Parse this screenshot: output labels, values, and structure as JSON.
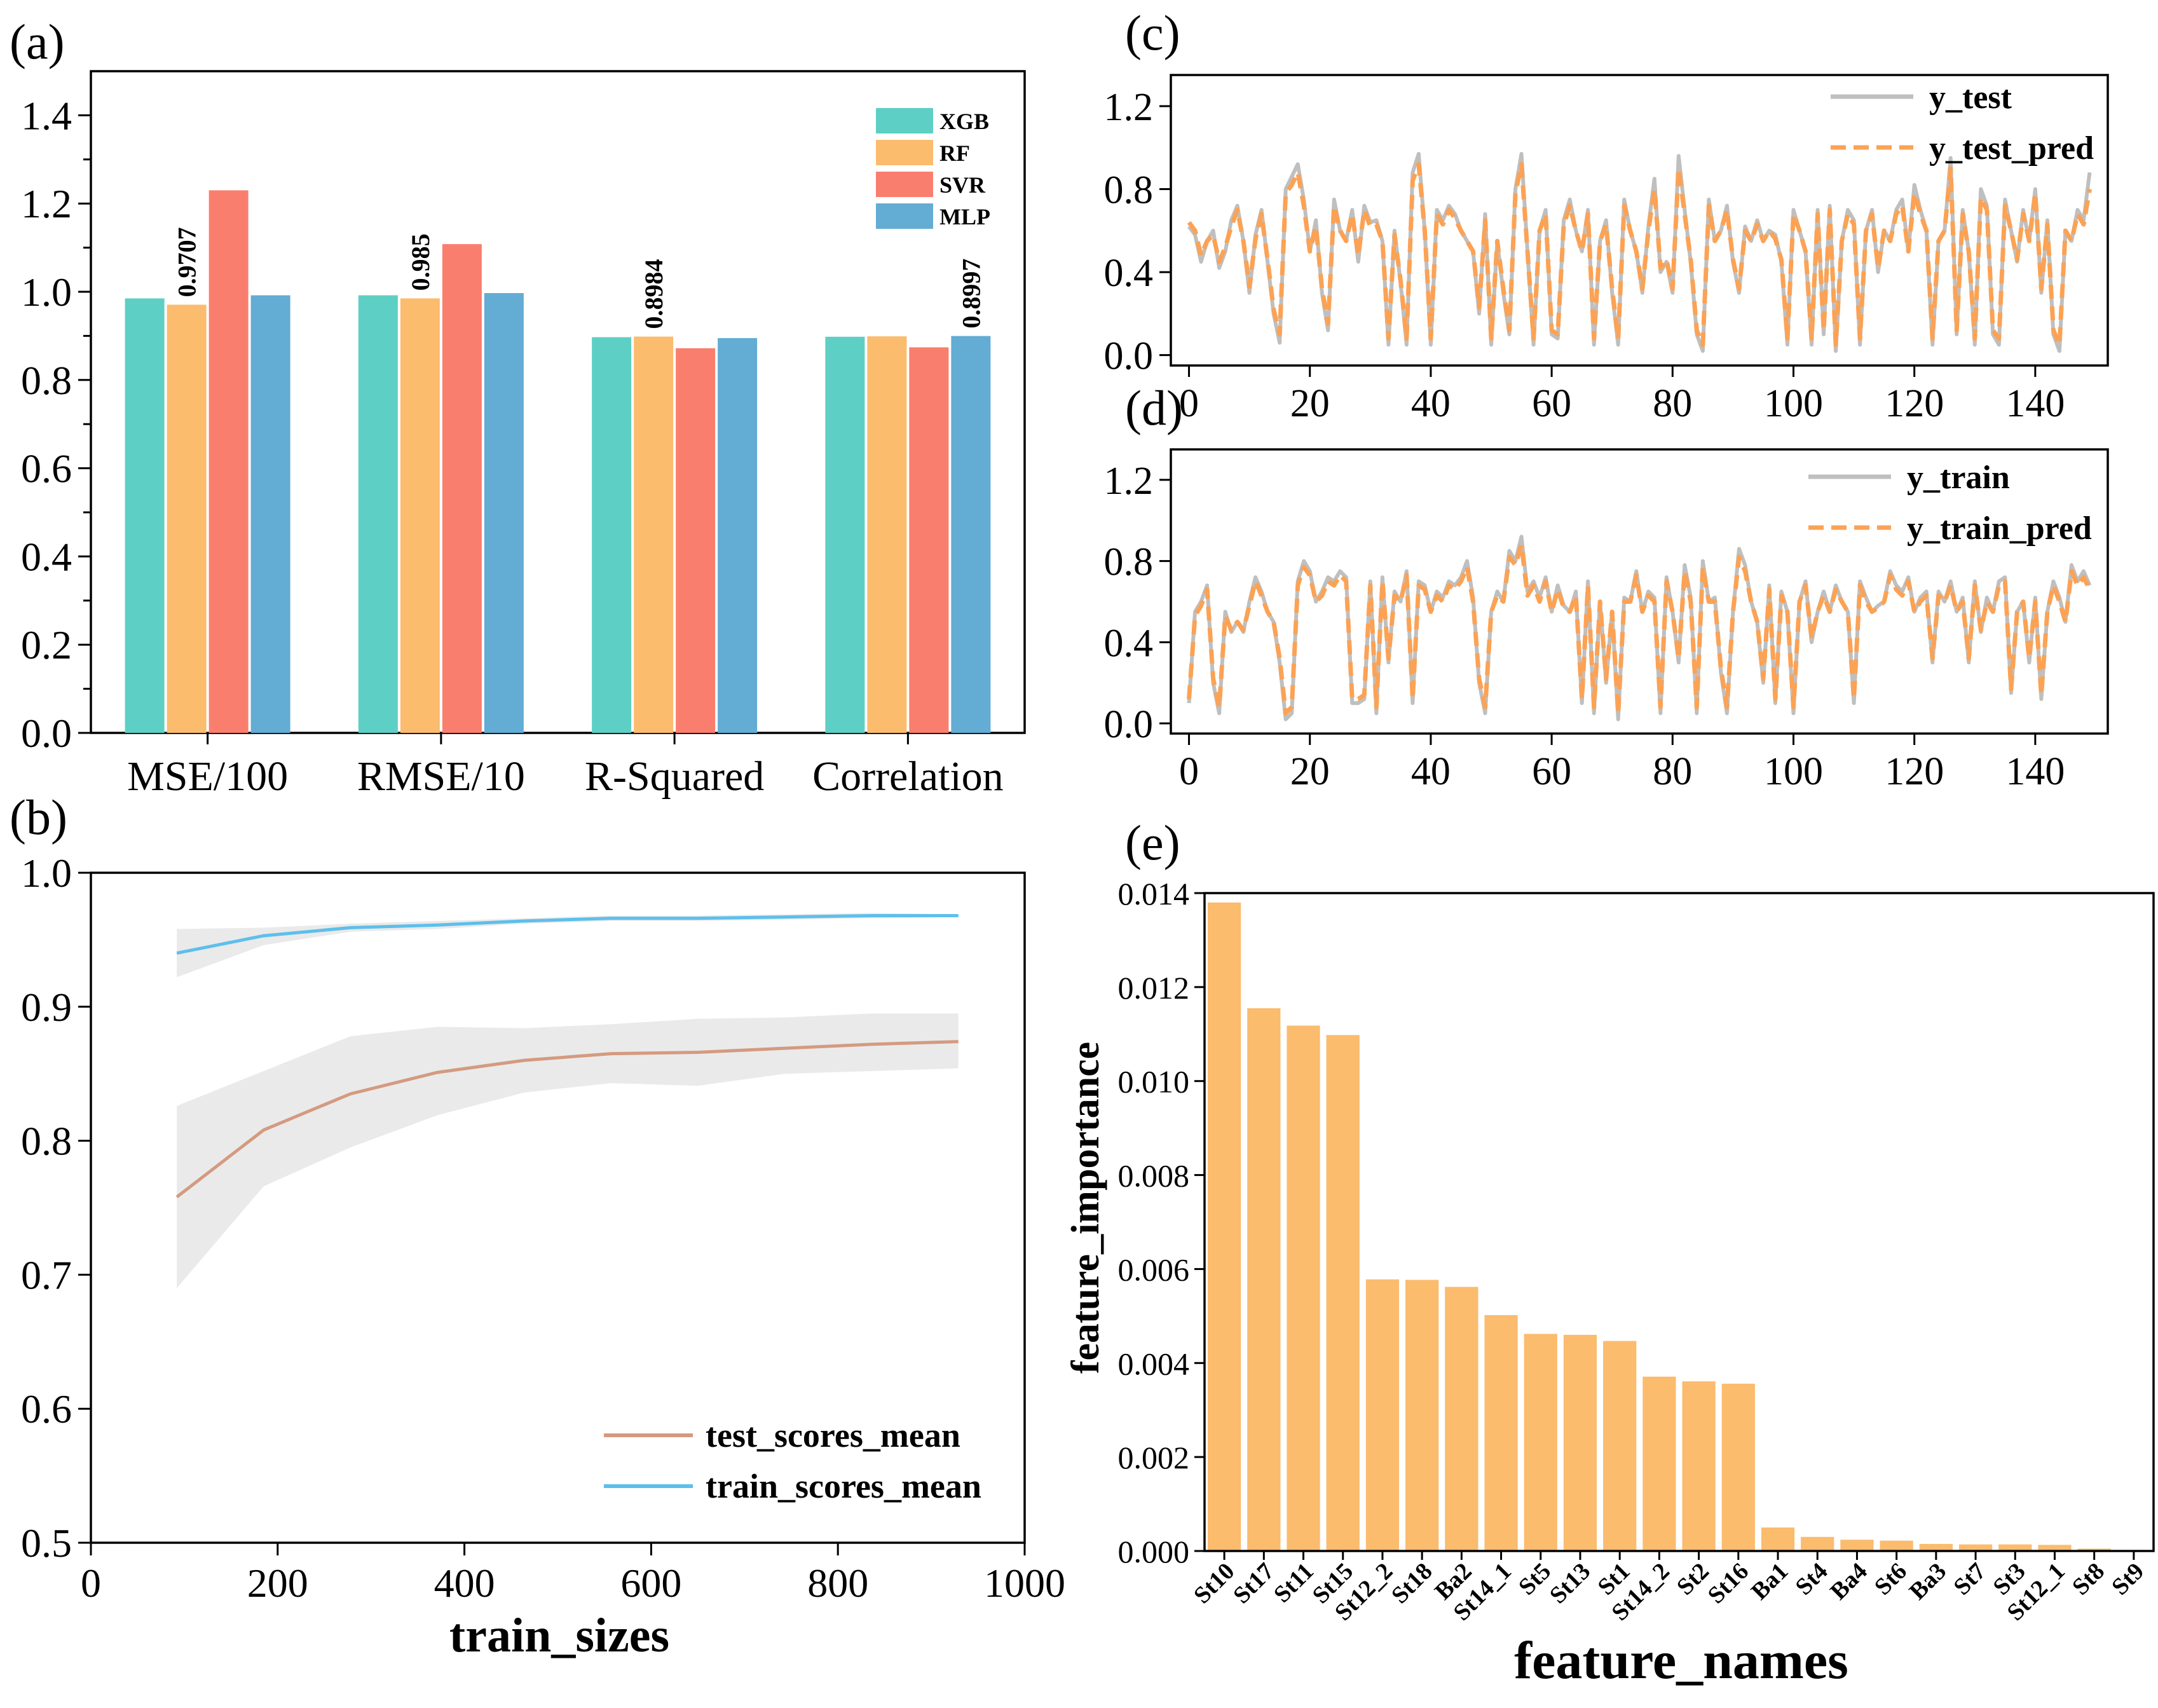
{
  "chart_data": [
    {
      "panel": "(a)",
      "type": "bar",
      "categories": [
        "MSE/100",
        "RMSE/10",
        "R-Squared",
        "Correlation"
      ],
      "series": [
        {
          "name": "XGB",
          "color": "#5ecfc4",
          "values": [
            0.985,
            0.992,
            0.897,
            0.898
          ]
        },
        {
          "name": "RF",
          "color": "#fbbc6e",
          "values": [
            0.9707,
            0.985,
            0.8984,
            0.899
          ]
        },
        {
          "name": "SVR",
          "color": "#fa7e6e",
          "values": [
            1.23,
            1.108,
            0.872,
            0.874
          ]
        },
        {
          "name": "MLP",
          "color": "#63acd3",
          "values": [
            0.992,
            0.997,
            0.895,
            0.8997
          ]
        }
      ],
      "data_labels": [
        {
          "category_index": 0,
          "series_index": 1,
          "text": "0.9707"
        },
        {
          "category_index": 1,
          "series_index": 1,
          "text": "0.985"
        },
        {
          "category_index": 2,
          "series_index": 1,
          "text": "0.8984"
        },
        {
          "category_index": 3,
          "series_index": 3,
          "text": "0.8997"
        }
      ],
      "ylim": [
        0,
        1.5
      ],
      "yticks": [
        "0.0",
        "0.2",
        "0.4",
        "0.6",
        "0.8",
        "1.0",
        "1.2",
        "1.4"
      ],
      "legend": "top-right"
    },
    {
      "panel": "(b)",
      "type": "line",
      "x": [
        92,
        185,
        278,
        371,
        464,
        557,
        650,
        743,
        836,
        929
      ],
      "series": [
        {
          "name": "test_scores_mean",
          "color": "#d49a80",
          "values": [
            0.758,
            0.808,
            0.835,
            0.851,
            0.86,
            0.865,
            0.866,
            0.869,
            0.872,
            0.874
          ],
          "band_upper": [
            0.826,
            0.852,
            0.878,
            0.885,
            0.884,
            0.887,
            0.891,
            0.892,
            0.895,
            0.895
          ],
          "band_lower": [
            0.69,
            0.766,
            0.795,
            0.819,
            0.836,
            0.843,
            0.841,
            0.85,
            0.852,
            0.854
          ]
        },
        {
          "name": "train_scores_mean",
          "color": "#5dbfeb",
          "values": [
            0.94,
            0.953,
            0.959,
            0.961,
            0.964,
            0.966,
            0.966,
            0.967,
            0.968,
            0.968
          ],
          "band_upper": [
            0.958,
            0.959,
            0.962,
            0.964,
            0.966,
            0.968,
            0.968,
            0.969,
            0.97,
            0.969
          ],
          "band_lower": [
            0.922,
            0.946,
            0.956,
            0.958,
            0.962,
            0.964,
            0.964,
            0.965,
            0.966,
            0.967
          ]
        }
      ],
      "xlabel": "train_sizes",
      "xlim": [
        0,
        1000
      ],
      "ylim": [
        0.5,
        1.0
      ],
      "xticks": [
        "0",
        "200",
        "400",
        "600",
        "800",
        "1000"
      ],
      "yticks": [
        "0.5",
        "0.6",
        "0.7",
        "0.8",
        "0.9",
        "1.0"
      ],
      "legend": "bottom-right"
    },
    {
      "panel": "(c)",
      "type": "line",
      "x_range": [
        0,
        149
      ],
      "series": [
        {
          "name": "y_test",
          "color": "#bfbfbf",
          "style": "solid",
          "values": [
            0.62,
            0.58,
            0.45,
            0.55,
            0.6,
            0.42,
            0.5,
            0.65,
            0.72,
            0.55,
            0.3,
            0.58,
            0.7,
            0.45,
            0.2,
            0.06,
            0.8,
            0.86,
            0.92,
            0.75,
            0.5,
            0.65,
            0.3,
            0.12,
            0.75,
            0.6,
            0.55,
            0.7,
            0.45,
            0.72,
            0.64,
            0.65,
            0.55,
            0.05,
            0.6,
            0.35,
            0.05,
            0.88,
            0.97,
            0.6,
            0.05,
            0.7,
            0.65,
            0.72,
            0.68,
            0.6,
            0.55,
            0.5,
            0.2,
            0.68,
            0.05,
            0.55,
            0.3,
            0.1,
            0.8,
            0.97,
            0.5,
            0.05,
            0.6,
            0.7,
            0.1,
            0.08,
            0.65,
            0.75,
            0.6,
            0.5,
            0.7,
            0.05,
            0.55,
            0.65,
            0.3,
            0.05,
            0.75,
            0.6,
            0.5,
            0.3,
            0.62,
            0.85,
            0.4,
            0.45,
            0.3,
            0.96,
            0.7,
            0.45,
            0.1,
            0.02,
            0.75,
            0.55,
            0.6,
            0.72,
            0.45,
            0.3,
            0.62,
            0.55,
            0.65,
            0.55,
            0.6,
            0.58,
            0.45,
            0.05,
            0.7,
            0.6,
            0.5,
            0.05,
            0.7,
            0.1,
            0.72,
            0.02,
            0.55,
            0.7,
            0.65,
            0.05,
            0.6,
            0.7,
            0.4,
            0.6,
            0.55,
            0.7,
            0.75,
            0.5,
            0.82,
            0.7,
            0.6,
            0.05,
            0.55,
            0.6,
            0.95,
            0.1,
            0.7,
            0.5,
            0.05,
            0.8,
            0.72,
            0.1,
            0.05,
            0.75,
            0.6,
            0.45,
            0.7,
            0.55,
            0.8,
            0.3,
            0.65,
            0.1,
            0.02,
            0.6,
            0.55,
            0.7,
            0.65,
            0.88
          ],
          "x_ticks_note": "values index 0..149"
        },
        {
          "name": "y_test_pred",
          "color": "#fba255",
          "style": "dashed",
          "values": [
            0.64,
            0.6,
            0.48,
            0.55,
            0.58,
            0.45,
            0.52,
            0.62,
            0.7,
            0.55,
            0.33,
            0.56,
            0.68,
            0.46,
            0.22,
            0.1,
            0.78,
            0.82,
            0.88,
            0.72,
            0.5,
            0.62,
            0.32,
            0.15,
            0.72,
            0.6,
            0.55,
            0.68,
            0.48,
            0.7,
            0.62,
            0.63,
            0.55,
            0.08,
            0.58,
            0.36,
            0.08,
            0.84,
            0.92,
            0.6,
            0.08,
            0.68,
            0.63,
            0.7,
            0.66,
            0.6,
            0.55,
            0.5,
            0.23,
            0.65,
            0.08,
            0.55,
            0.32,
            0.12,
            0.78,
            0.92,
            0.5,
            0.08,
            0.6,
            0.68,
            0.12,
            0.1,
            0.63,
            0.72,
            0.6,
            0.5,
            0.68,
            0.08,
            0.55,
            0.63,
            0.32,
            0.08,
            0.72,
            0.6,
            0.5,
            0.32,
            0.6,
            0.8,
            0.42,
            0.46,
            0.32,
            0.9,
            0.68,
            0.46,
            0.12,
            0.05,
            0.72,
            0.55,
            0.6,
            0.7,
            0.46,
            0.32,
            0.6,
            0.55,
            0.63,
            0.55,
            0.6,
            0.56,
            0.46,
            0.08,
            0.68,
            0.6,
            0.5,
            0.08,
            0.68,
            0.12,
            0.7,
            0.05,
            0.55,
            0.68,
            0.63,
            0.08,
            0.6,
            0.68,
            0.42,
            0.6,
            0.55,
            0.68,
            0.72,
            0.5,
            0.78,
            0.68,
            0.6,
            0.08,
            0.55,
            0.6,
            0.9,
            0.12,
            0.68,
            0.5,
            0.08,
            0.76,
            0.7,
            0.12,
            0.08,
            0.72,
            0.6,
            0.46,
            0.68,
            0.55,
            0.78,
            0.32,
            0.63,
            0.12,
            0.05,
            0.6,
            0.55,
            0.68,
            0.63,
            0.8
          ]
        }
      ],
      "xlim": [
        -3,
        152
      ],
      "ylim": [
        -0.05,
        1.35
      ],
      "xticks": [
        "0",
        "20",
        "40",
        "60",
        "80",
        "100",
        "120",
        "140"
      ],
      "yticks": [
        "0.0",
        "0.4",
        "0.8",
        "1.2"
      ],
      "legend": "top-right"
    },
    {
      "panel": "(d)",
      "type": "line",
      "x_range": [
        0,
        149
      ],
      "series": [
        {
          "name": "y_train",
          "color": "#bfbfbf",
          "style": "solid",
          "values": [
            0.1,
            0.55,
            0.6,
            0.68,
            0.2,
            0.05,
            0.55,
            0.45,
            0.5,
            0.45,
            0.6,
            0.72,
            0.65,
            0.55,
            0.5,
            0.3,
            0.02,
            0.05,
            0.7,
            0.8,
            0.75,
            0.6,
            0.65,
            0.72,
            0.7,
            0.75,
            0.72,
            0.1,
            0.1,
            0.12,
            0.7,
            0.05,
            0.72,
            0.3,
            0.65,
            0.6,
            0.75,
            0.1,
            0.7,
            0.68,
            0.55,
            0.65,
            0.62,
            0.7,
            0.68,
            0.72,
            0.8,
            0.62,
            0.2,
            0.05,
            0.55,
            0.65,
            0.6,
            0.85,
            0.8,
            0.92,
            0.65,
            0.7,
            0.62,
            0.72,
            0.55,
            0.68,
            0.58,
            0.55,
            0.65,
            0.1,
            0.7,
            0.05,
            0.6,
            0.2,
            0.55,
            0.02,
            0.62,
            0.6,
            0.75,
            0.55,
            0.65,
            0.62,
            0.05,
            0.72,
            0.55,
            0.3,
            0.78,
            0.62,
            0.05,
            0.8,
            0.6,
            0.62,
            0.25,
            0.05,
            0.55,
            0.86,
            0.78,
            0.6,
            0.5,
            0.2,
            0.68,
            0.1,
            0.65,
            0.55,
            0.05,
            0.6,
            0.7,
            0.4,
            0.55,
            0.65,
            0.55,
            0.68,
            0.6,
            0.55,
            0.1,
            0.7,
            0.62,
            0.55,
            0.58,
            0.6,
            0.75,
            0.68,
            0.65,
            0.72,
            0.55,
            0.62,
            0.65,
            0.3,
            0.65,
            0.6,
            0.7,
            0.55,
            0.62,
            0.3,
            0.7,
            0.45,
            0.62,
            0.55,
            0.7,
            0.72,
            0.15,
            0.55,
            0.6,
            0.3,
            0.62,
            0.12,
            0.55,
            0.7,
            0.62,
            0.5,
            0.78,
            0.7,
            0.75,
            0.68
          ],
          "x_ticks_note": "values index 0..149"
        },
        {
          "name": "y_train_pred",
          "color": "#fba255",
          "style": "dashed",
          "values": [
            0.12,
            0.53,
            0.58,
            0.66,
            0.22,
            0.08,
            0.53,
            0.46,
            0.5,
            0.46,
            0.58,
            0.7,
            0.63,
            0.55,
            0.5,
            0.32,
            0.05,
            0.08,
            0.68,
            0.77,
            0.73,
            0.6,
            0.63,
            0.7,
            0.68,
            0.73,
            0.7,
            0.12,
            0.12,
            0.14,
            0.68,
            0.08,
            0.7,
            0.32,
            0.63,
            0.6,
            0.73,
            0.12,
            0.68,
            0.66,
            0.55,
            0.63,
            0.6,
            0.68,
            0.66,
            0.7,
            0.77,
            0.6,
            0.22,
            0.08,
            0.55,
            0.63,
            0.6,
            0.82,
            0.78,
            0.88,
            0.63,
            0.68,
            0.6,
            0.7,
            0.55,
            0.66,
            0.57,
            0.55,
            0.63,
            0.12,
            0.68,
            0.08,
            0.6,
            0.22,
            0.55,
            0.05,
            0.6,
            0.6,
            0.73,
            0.55,
            0.63,
            0.6,
            0.08,
            0.7,
            0.55,
            0.32,
            0.75,
            0.6,
            0.08,
            0.77,
            0.6,
            0.6,
            0.27,
            0.08,
            0.55,
            0.82,
            0.75,
            0.6,
            0.5,
            0.22,
            0.66,
            0.12,
            0.63,
            0.55,
            0.08,
            0.6,
            0.68,
            0.42,
            0.55,
            0.63,
            0.55,
            0.66,
            0.6,
            0.55,
            0.12,
            0.68,
            0.6,
            0.55,
            0.57,
            0.6,
            0.73,
            0.66,
            0.63,
            0.7,
            0.55,
            0.6,
            0.63,
            0.32,
            0.63,
            0.6,
            0.68,
            0.55,
            0.6,
            0.32,
            0.68,
            0.46,
            0.6,
            0.55,
            0.68,
            0.7,
            0.17,
            0.55,
            0.6,
            0.32,
            0.6,
            0.14,
            0.55,
            0.68,
            0.6,
            0.5,
            0.75,
            0.68,
            0.72,
            0.66
          ]
        }
      ],
      "xlim": [
        -3,
        152
      ],
      "ylim": [
        -0.05,
        1.35
      ],
      "xticks": [
        "0",
        "20",
        "40",
        "60",
        "80",
        "100",
        "120",
        "140"
      ],
      "yticks": [
        "0.0",
        "0.4",
        "0.8",
        "1.2"
      ],
      "legend": "top-right"
    },
    {
      "panel": "(e)",
      "type": "bar",
      "categories": [
        "St10",
        "St17",
        "St11",
        "St15",
        "St12_2",
        "St18",
        "Ba2",
        "St14_1",
        "St5",
        "St13",
        "St1",
        "St14_2",
        "St2",
        "St16",
        "Ba1",
        "St4",
        "Ba4",
        "St6",
        "Ba3",
        "St7",
        "St3",
        "St12_1",
        "St8",
        "St9"
      ],
      "values": [
        0.0138,
        0.01155,
        0.01118,
        0.01098,
        0.00578,
        0.00577,
        0.00562,
        0.00502,
        0.00462,
        0.0046,
        0.00447,
        0.00371,
        0.00361,
        0.00356,
        0.0005,
        0.0003,
        0.00024,
        0.00022,
        0.00015,
        0.00014,
        0.00014,
        0.00013,
        5e-05,
        2e-05
      ],
      "color": "#fbbc6e",
      "xlabel": "feature_names",
      "ylabel": "feature_importance",
      "ylim": [
        0,
        0.014
      ],
      "yticks": [
        "0.000",
        "0.002",
        "0.004",
        "0.006",
        "0.008",
        "0.010",
        "0.012",
        "0.014"
      ]
    }
  ]
}
